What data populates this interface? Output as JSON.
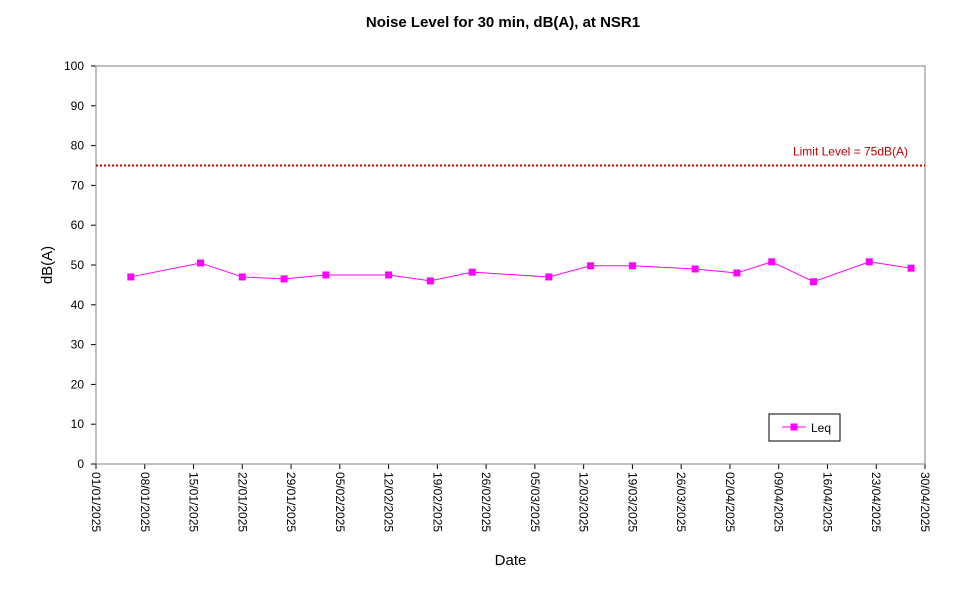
{
  "chart_data": {
    "type": "line",
    "title": "Noise Level for 30 min, dB(A), at NSR1",
    "xlabel": "Date",
    "ylabel": "dB(A)",
    "ylim": [
      0,
      100
    ],
    "y_ticks": [
      0,
      10,
      20,
      30,
      40,
      50,
      60,
      70,
      80,
      90,
      100
    ],
    "x_range": [
      "01/01/2025",
      "30/04/2025"
    ],
    "x_ticks": [
      "01/01/2025",
      "08/01/2025",
      "15/01/2025",
      "22/01/2025",
      "29/01/2025",
      "05/02/2025",
      "12/02/2025",
      "19/02/2025",
      "26/02/2025",
      "05/03/2025",
      "12/03/2025",
      "19/03/2025",
      "26/03/2025",
      "02/04/2025",
      "09/04/2025",
      "16/04/2025",
      "23/04/2025",
      "30/04/2025"
    ],
    "grid": false,
    "legend_position": "bottom-right",
    "series": [
      {
        "name": "Leq",
        "color": "#ff00ff",
        "marker": "square",
        "x": [
          "06/01/2025",
          "16/01/2025",
          "22/01/2025",
          "28/01/2025",
          "03/02/2025",
          "12/02/2025",
          "18/02/2025",
          "24/02/2025",
          "07/03/2025",
          "13/03/2025",
          "19/03/2025",
          "28/03/2025",
          "03/04/2025",
          "08/04/2025",
          "14/04/2025",
          "22/04/2025",
          "28/04/2025"
        ],
        "values": [
          47.0,
          50.5,
          47.0,
          46.5,
          47.5,
          47.5,
          46.0,
          48.2,
          47.0,
          49.8,
          49.8,
          49.0,
          48.0,
          50.8,
          45.8,
          50.8,
          49.2
        ]
      }
    ],
    "reference_line": {
      "label": "Limit Level  = 75dB(A)",
      "value": 75,
      "color": "#c00000",
      "style": "dotted"
    }
  }
}
